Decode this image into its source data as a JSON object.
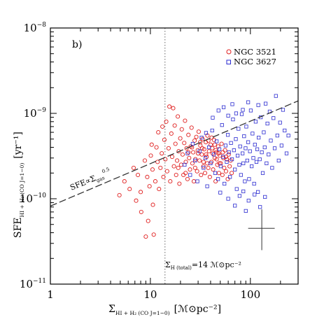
{
  "chart_data": {
    "type": "scatter",
    "panel_label": "b)",
    "xscale": "log",
    "yscale": "log",
    "xlim": [
      1,
      300
    ],
    "ylim": [
      1e-11,
      1e-08
    ],
    "x_tick_labels": [
      {
        "value": 1,
        "label": "1"
      },
      {
        "value": 10,
        "label": "10"
      },
      {
        "value": 100,
        "label": "100"
      }
    ],
    "y_tick_labels": [
      {
        "value": 1e-11,
        "base": "10",
        "exp": "−11"
      },
      {
        "value": 1e-10,
        "base": "10",
        "exp": "−10"
      },
      {
        "value": 1e-09,
        "base": "10",
        "exp": "−9"
      },
      {
        "value": 1e-08,
        "base": "10",
        "exp": "−8"
      }
    ],
    "xlabel": {
      "main": "Σ",
      "sub": "HI + H₂ (CO J=1−0)",
      "unit": "[ℳ⊙pc⁻²]"
    },
    "ylabel": {
      "main": "SFE",
      "sub": "HI + H₂ (CO J=1−0)",
      "unit": "[yr⁻¹]"
    },
    "legend_position": "top-right",
    "series": [
      {
        "name": "NGC 3521",
        "color": "#e02020",
        "marker": "circle",
        "points": [
          [
            4.9,
            1.1e-10
          ],
          [
            5.5,
            1.6e-10
          ],
          [
            6.2,
            1.3e-10
          ],
          [
            6.8,
            2.3e-10
          ],
          [
            7.2,
            9.5e-11
          ],
          [
            7.5,
            1.9e-10
          ],
          [
            8.0,
            1.2e-10
          ],
          [
            8.1,
            7e-11
          ],
          [
            8.8,
            2.8e-10
          ],
          [
            9.0,
            3.6e-11
          ],
          [
            9.3,
            1.8e-10
          ],
          [
            9.5,
            5.5e-11
          ],
          [
            9.8,
            1.4e-10
          ],
          [
            10.1,
            3.2e-10
          ],
          [
            10.3,
            4.3e-10
          ],
          [
            10.5,
            2.2e-10
          ],
          [
            10.6,
            8.5e-11
          ],
          [
            10.8,
            3.8e-11
          ],
          [
            11.2,
            1.6e-10
          ],
          [
            11.5,
            4e-10
          ],
          [
            11.8,
            2.7e-10
          ],
          [
            12.0,
            6e-10
          ],
          [
            12.2,
            1.3e-10
          ],
          [
            12.6,
            2.3e-10
          ],
          [
            13.0,
            3.4e-10
          ],
          [
            13.2,
            7e-10
          ],
          [
            13.5,
            1.8e-10
          ],
          [
            13.8,
            4.9e-10
          ],
          [
            14.1,
            2.9e-10
          ],
          [
            14.4,
            8e-10
          ],
          [
            14.7,
            2.1e-10
          ],
          [
            15.2,
            3.9e-10
          ],
          [
            15.5,
            1.2e-09
          ],
          [
            15.8,
            1.6e-10
          ],
          [
            16.2,
            5.8e-10
          ],
          [
            16.5,
            3.1e-10
          ],
          [
            16.9,
            1.15e-09
          ],
          [
            17.2,
            2.4e-10
          ],
          [
            17.5,
            7.2e-10
          ],
          [
            17.8,
            4.4e-10
          ],
          [
            18.1,
            1.9e-10
          ],
          [
            18.5,
            2.8e-10
          ],
          [
            18.8,
            9.2e-10
          ],
          [
            19.2,
            3.6e-10
          ],
          [
            19.5,
            1.5e-10
          ],
          [
            19.9,
            5.1e-10
          ],
          [
            20.3,
            2.5e-10
          ],
          [
            20.6,
            6.5e-10
          ],
          [
            21.0,
            3.3e-10
          ],
          [
            21.4,
            1.9e-10
          ],
          [
            21.8,
            4.5e-10
          ],
          [
            22.2,
            8.2e-10
          ],
          [
            22.6,
            2.7e-10
          ],
          [
            23.0,
            3.9e-10
          ],
          [
            23.5,
            1.7e-10
          ],
          [
            24.0,
            5.6e-10
          ],
          [
            24.4,
            3e-10
          ],
          [
            24.9,
            2.2e-10
          ],
          [
            25.3,
            4.1e-10
          ],
          [
            25.8,
            6.8e-10
          ],
          [
            26.3,
            2.6e-10
          ],
          [
            26.8,
            3.5e-10
          ],
          [
            27.2,
            1.6e-10
          ],
          [
            27.7,
            4.8e-10
          ],
          [
            28.2,
            2.9e-10
          ],
          [
            28.8,
            5.3e-10
          ],
          [
            29.3,
            2.1e-10
          ],
          [
            29.8,
            3.7e-10
          ],
          [
            30.4,
            6.1e-10
          ],
          [
            31.0,
            2.8e-10
          ],
          [
            31.6,
            4.2e-10
          ],
          [
            32.1,
            1.9e-10
          ],
          [
            32.7,
            3.3e-10
          ],
          [
            33.3,
            5e-10
          ],
          [
            33.9,
            2.4e-10
          ],
          [
            34.5,
            3.8e-10
          ],
          [
            35.2,
            2e-10
          ],
          [
            35.8,
            4.6e-10
          ],
          [
            36.5,
            3.1e-10
          ],
          [
            37.2,
            5.5e-10
          ],
          [
            37.9,
            2.3e-10
          ],
          [
            38.6,
            3.6e-10
          ],
          [
            39.3,
            1.8e-10
          ],
          [
            40.0,
            4.3e-10
          ],
          [
            40.8,
            2.7e-10
          ],
          [
            41.6,
            3.9e-10
          ],
          [
            42.4,
            2.2e-10
          ],
          [
            43.2,
            4.9e-10
          ],
          [
            44.0,
            3e-10
          ],
          [
            44.9,
            1.6e-10
          ],
          [
            45.8,
            3.5e-10
          ],
          [
            46.7,
            2.5e-10
          ],
          [
            47.6,
            4.1e-10
          ],
          [
            48.5,
            2e-10
          ],
          [
            49.5,
            3.2e-10
          ],
          [
            50.5,
            2.6e-10
          ],
          [
            51.5,
            4.4e-10
          ],
          [
            52.5,
            1.9e-10
          ],
          [
            53.6,
            3e-10
          ],
          [
            54.7,
            2.3e-10
          ],
          [
            55.8,
            3.7e-10
          ],
          [
            57.0,
            2.1e-10
          ],
          [
            58.2,
            2.9e-10
          ],
          [
            59.4,
            1.7e-10
          ],
          [
            60.6,
            3.3e-10
          ],
          [
            62.0,
            2.4e-10
          ],
          [
            63.4,
            2.8e-10
          ],
          [
            65.0,
            2e-10
          ],
          [
            22.5,
            2e-10
          ],
          [
            26.0,
            4e-10
          ],
          [
            30.0,
            3.4e-10
          ],
          [
            34.0,
            2.7e-10
          ],
          [
            38.0,
            4.8e-10
          ],
          [
            42.0,
            3.4e-10
          ],
          [
            46.0,
            2.9e-10
          ],
          [
            28.0,
            2.3e-10
          ],
          [
            33.0,
            3.9e-10
          ],
          [
            37.0,
            2.6e-10
          ],
          [
            41.0,
            5.2e-10
          ],
          [
            45.0,
            3.7e-10
          ],
          [
            49.0,
            2.6e-10
          ],
          [
            53.0,
            3.5e-10
          ],
          [
            57.0,
            3.1e-10
          ],
          [
            19.0,
            2.3e-10
          ],
          [
            24.0,
            3.5e-10
          ],
          [
            31.5,
            4.6e-10
          ],
          [
            36.0,
            3.3e-10
          ],
          [
            44.0,
            4.3e-10
          ],
          [
            48.0,
            3.4e-10
          ]
        ]
      },
      {
        "name": "NGC 3627",
        "color": "#2a2ad0",
        "marker": "square",
        "points": [
          [
            22.0,
            2.5e-10
          ],
          [
            23.5,
            3.4e-10
          ],
          [
            25.0,
            1.9e-10
          ],
          [
            26.5,
            4.4e-10
          ],
          [
            28.0,
            2.8e-10
          ],
          [
            29.5,
            1.6e-10
          ],
          [
            31.0,
            3.6e-10
          ],
          [
            32.5,
            5.2e-10
          ],
          [
            34.0,
            2.3e-10
          ],
          [
            35.5,
            3e-10
          ],
          [
            37.0,
            1.4e-10
          ],
          [
            38.5,
            4e-10
          ],
          [
            40.0,
            2.6e-10
          ],
          [
            41.5,
            6.3e-10
          ],
          [
            43.0,
            3.3e-10
          ],
          [
            44.5,
            2e-10
          ],
          [
            46.0,
            4.7e-10
          ],
          [
            47.5,
            1.7e-10
          ],
          [
            49.0,
            3.8e-10
          ],
          [
            50.5,
            2.4e-10
          ],
          [
            52.0,
            7.3e-10
          ],
          [
            53.5,
            3.1e-10
          ],
          [
            55.0,
            1.5e-10
          ],
          [
            56.5,
            4.2e-10
          ],
          [
            58.0,
            2.7e-10
          ],
          [
            59.5,
            5.6e-10
          ],
          [
            61.0,
            3.5e-10
          ],
          [
            62.5,
            1.8e-10
          ],
          [
            64.0,
            4.5e-10
          ],
          [
            65.5,
            2.9e-10
          ],
          [
            67.0,
            8.5e-10
          ],
          [
            68.5,
            3.7e-10
          ],
          [
            70.0,
            2.2e-10
          ],
          [
            71.5,
            5e-10
          ],
          [
            73.0,
            1.3e-10
          ],
          [
            74.5,
            3.2e-10
          ],
          [
            76.0,
            6.6e-10
          ],
          [
            77.5,
            2.5e-10
          ],
          [
            79.0,
            4.1e-10
          ],
          [
            80.5,
            1.9e-10
          ],
          [
            82.0,
            9.8e-10
          ],
          [
            83.5,
            3.4e-10
          ],
          [
            85.0,
            2.6e-10
          ],
          [
            86.5,
            5.4e-10
          ],
          [
            88.0,
            1.6e-10
          ],
          [
            89.5,
            3.9e-10
          ],
          [
            91.0,
            7e-10
          ],
          [
            93.0,
            2.8e-10
          ],
          [
            95.0,
            4.6e-10
          ],
          [
            97.0,
            1.7e-10
          ],
          [
            99.0,
            3.6e-10
          ],
          [
            101.0,
            1.08e-09
          ],
          [
            103.0,
            2.4e-10
          ],
          [
            105.0,
            5.8e-10
          ],
          [
            107.0,
            3e-10
          ],
          [
            109.0,
            1.5e-10
          ],
          [
            111.0,
            4.3e-10
          ],
          [
            113.0,
            8e-10
          ],
          [
            115.0,
            2.7e-10
          ],
          [
            117.0,
            3.8e-10
          ],
          [
            119.0,
            1.2e-10
          ],
          [
            121.0,
            5.2e-10
          ],
          [
            124.0,
            2.9e-10
          ],
          [
            127.0,
            9e-10
          ],
          [
            130.0,
            3.5e-10
          ],
          [
            133.0,
            2e-10
          ],
          [
            136.0,
            6e-10
          ],
          [
            139.0,
            4e-10
          ],
          [
            142.0,
            1.3e-09
          ],
          [
            145.0,
            2.6e-10
          ],
          [
            148.0,
            7.6e-10
          ],
          [
            152.0,
            3.3e-10
          ],
          [
            156.0,
            1.05e-09
          ],
          [
            160.0,
            4.8e-10
          ],
          [
            165.0,
            2.3e-10
          ],
          [
            170.0,
            8.8e-10
          ],
          [
            175.0,
            3.9e-10
          ],
          [
            180.0,
            1.6e-09
          ],
          [
            186.0,
            5.5e-10
          ],
          [
            192.0,
            2.8e-10
          ],
          [
            198.0,
            7.8e-10
          ],
          [
            205.0,
            4.2e-10
          ],
          [
            212.0,
            1.1e-09
          ],
          [
            220.0,
            6.3e-10
          ],
          [
            230.0,
            3.4e-10
          ],
          [
            240.0,
            5.5e-10
          ],
          [
            36.0,
            5.9e-10
          ],
          [
            42.0,
            8.9e-10
          ],
          [
            48.0,
            1.08e-09
          ],
          [
            54.0,
            1.18e-09
          ],
          [
            60.0,
            9.4e-10
          ],
          [
            66.0,
            1.28e-09
          ],
          [
            72.0,
            1e-09
          ],
          [
            84.0,
            1.1e-09
          ],
          [
            95.0,
            1.35e-09
          ],
          [
            120.0,
            1.25e-09
          ],
          [
            60.0,
            1e-10
          ],
          [
            70.0,
            8.3e-11
          ],
          [
            78.0,
            1.08e-10
          ],
          [
            90.0,
            7.2e-11
          ],
          [
            96.0,
            9.5e-11
          ],
          [
            110.0,
            1.12e-10
          ],
          [
            125.0,
            8e-11
          ],
          [
            140.0,
            1.05e-10
          ],
          [
            50.0,
            1.18e-10
          ],
          [
            85.0,
            1.22e-10
          ]
        ]
      }
    ],
    "fit_line": {
      "label_main": "SFE∝Σ",
      "label_sub": "gas",
      "label_exp": "0.5",
      "style": "dashed",
      "color": "#333333",
      "from": [
        1,
        8.2e-11
      ],
      "to": [
        300,
        1.4e-09
      ]
    },
    "vertical_line": {
      "x": 14,
      "style": "dotted",
      "label_main": "Σ",
      "label_sub": "H (total)",
      "label_rest": "=14 ℳ⊙pc⁻²"
    },
    "error_bar": {
      "x": 130,
      "y": 4.5e-11,
      "x_low": 95,
      "x_high": 175,
      "y_low": 2.5e-11,
      "y_high": 7.5e-11
    }
  }
}
